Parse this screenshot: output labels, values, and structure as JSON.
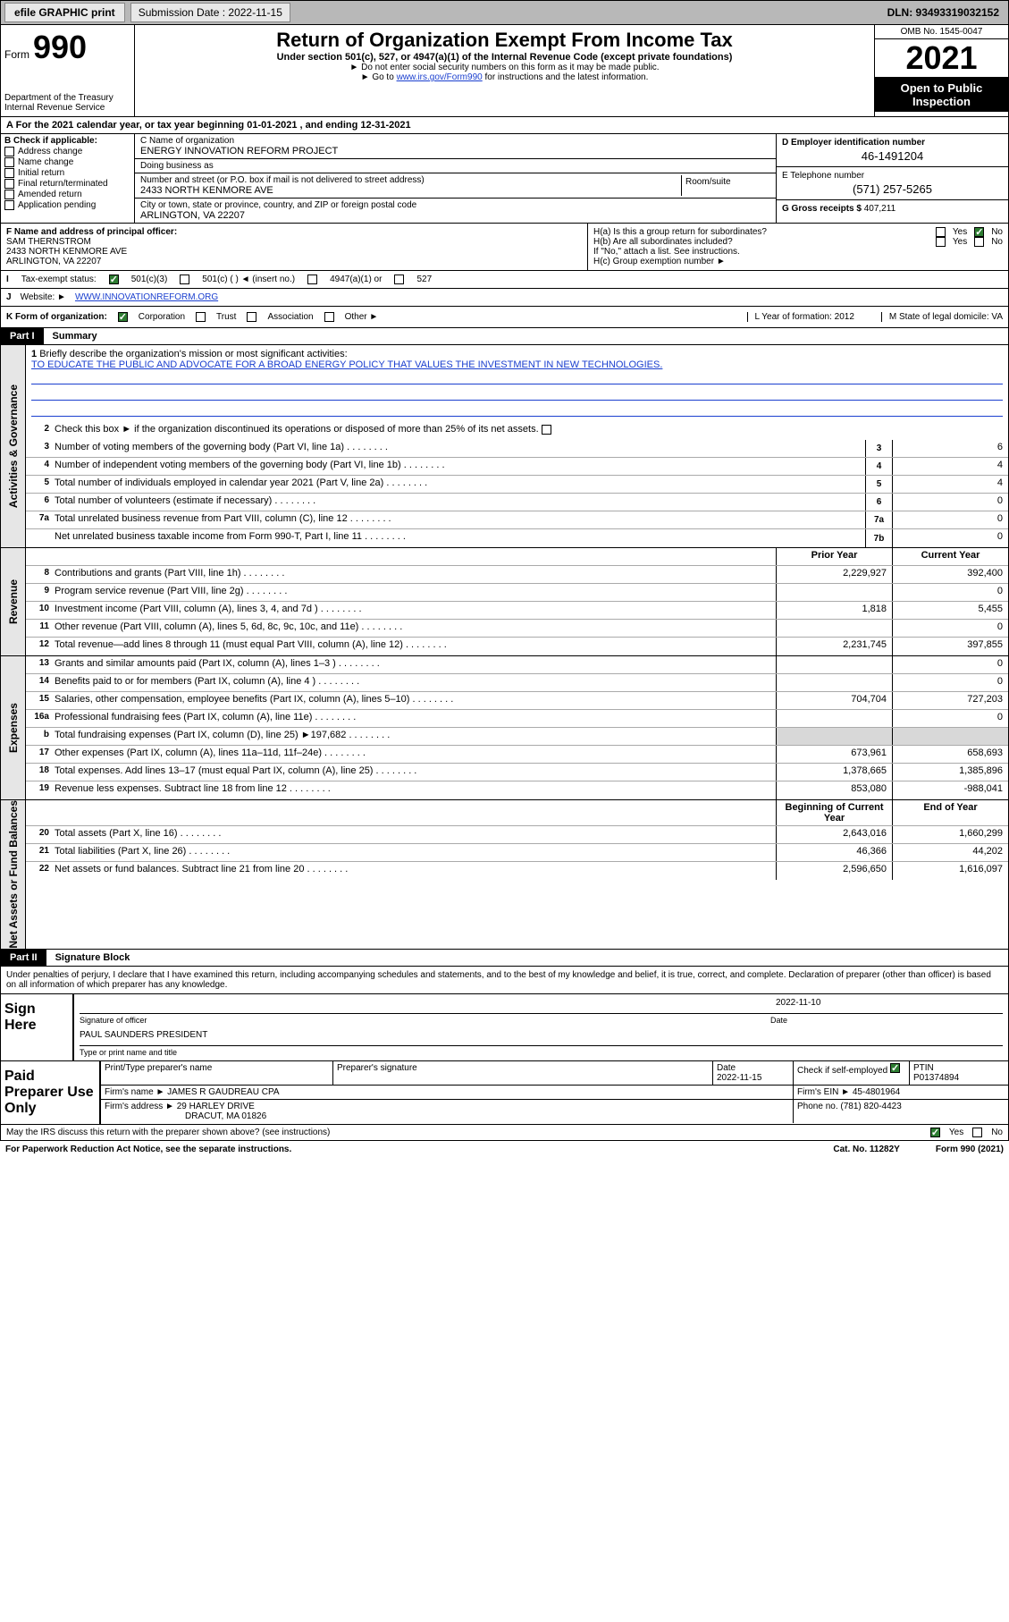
{
  "topbar": {
    "efile_label": "efile GRAPHIC print",
    "submission_label": "Submission Date : 2022-11-15",
    "dln": "DLN: 93493319032152"
  },
  "header": {
    "form_word": "Form",
    "form_number": "990",
    "title": "Return of Organization Exempt From Income Tax",
    "subtitle": "Under section 501(c), 527, or 4947(a)(1) of the Internal Revenue Code (except private foundations)",
    "note1": "Do not enter social security numbers on this form as it may be made public.",
    "note2_pre": "Go to ",
    "note2_link": "www.irs.gov/Form990",
    "note2_post": " for instructions and the latest information.",
    "dept": "Department of the Treasury\nInternal Revenue Service",
    "omb": "OMB No. 1545-0047",
    "taxyear": "2021",
    "open": "Open to Public Inspection"
  },
  "period": {
    "line": "For the 2021 calendar year, or tax year beginning 01-01-2021   , and ending 12-31-2021",
    "prefix": "A"
  },
  "checks": {
    "heading": "B Check if applicable:",
    "address_change": "Address change",
    "name_change": "Name change",
    "initial_return": "Initial return",
    "final_return": "Final return/terminated",
    "amended_return": "Amended return",
    "application_pending": "Application pending"
  },
  "entity": {
    "name_label": "C Name of organization",
    "name": "ENERGY INNOVATION REFORM PROJECT",
    "dba_label": "Doing business as",
    "dba": "",
    "street_label": "Number and street (or P.O. box if mail is not delivered to street address)",
    "street": "2433 NORTH KENMORE AVE",
    "suite_label": "Room/suite",
    "city_label": "City or town, state or province, country, and ZIP or foreign postal code",
    "city": "ARLINGTON, VA  22207",
    "ein_label": "D Employer identification number",
    "ein": "46-1491204",
    "phone_label": "E Telephone number",
    "phone": "(571) 257-5265",
    "gross_label": "G Gross receipts $",
    "gross": "407,211"
  },
  "officer": {
    "label": "F  Name and address of principal officer:",
    "name": "SAM THERNSTROM",
    "street": "2433 NORTH KENMORE AVE",
    "city": "ARLINGTON, VA  22207"
  },
  "h": {
    "ha_label": "H(a)  Is this a group return for subordinates?",
    "hb_label": "H(b)  Are all subordinates included?",
    "hb_note": "If \"No,\" attach a list. See instructions.",
    "hc_label": "H(c)  Group exemption number ►",
    "yes": "Yes",
    "no": "No"
  },
  "i": {
    "label": "Tax-exempt status:",
    "opt1": "501(c)(3)",
    "opt2": "501(c) (  ) ◄ (insert no.)",
    "opt3": "4947(a)(1) or",
    "opt4": "527"
  },
  "j": {
    "label": "Website: ►",
    "value": "WWW.INNOVATIONREFORM.ORG"
  },
  "k": {
    "label": "K Form of organization:",
    "corp": "Corporation",
    "trust": "Trust",
    "assoc": "Association",
    "other": "Other ►",
    "l_label": "L Year of formation:",
    "l_val": "2012",
    "m_label": "M State of legal domicile:",
    "m_val": "VA"
  },
  "part1": {
    "tag": "Part I",
    "title": "Summary"
  },
  "governance": {
    "sidelabel": "Activities & Governance",
    "l1_label": "Briefly describe the organization's mission or most significant activities:",
    "l1_mission": "TO EDUCATE THE PUBLIC AND ADVOCATE FOR A BROAD ENERGY POLICY THAT VALUES THE INVESTMENT IN NEW TECHNOLOGIES.",
    "l2_label": "Check this box ►        if the organization discontinued its operations or disposed of more than 25% of its net assets.",
    "l3_label": "Number of voting members of the governing body (Part VI, line 1a)",
    "l3_val": "6",
    "l4_label": "Number of independent voting members of the governing body (Part VI, line 1b)",
    "l4_val": "4",
    "l5_label": "Total number of individuals employed in calendar year 2021 (Part V, line 2a)",
    "l5_val": "4",
    "l6_label": "Total number of volunteers (estimate if necessary)",
    "l6_val": "0",
    "l7a_label": "Total unrelated business revenue from Part VIII, column (C), line 12",
    "l7a_val": "0",
    "l7b_label": "Net unrelated business taxable income from Form 990-T, Part I, line 11",
    "l7b_val": "0"
  },
  "colheads": {
    "prior": "Prior Year",
    "current": "Current Year"
  },
  "revenue": {
    "sidelabel": "Revenue",
    "rows": [
      {
        "n": "8",
        "d": "Contributions and grants (Part VIII, line 1h)",
        "p": "2,229,927",
        "c": "392,400"
      },
      {
        "n": "9",
        "d": "Program service revenue (Part VIII, line 2g)",
        "p": "",
        "c": "0"
      },
      {
        "n": "10",
        "d": "Investment income (Part VIII, column (A), lines 3, 4, and 7d )",
        "p": "1,818",
        "c": "5,455"
      },
      {
        "n": "11",
        "d": "Other revenue (Part VIII, column (A), lines 5, 6d, 8c, 9c, 10c, and 11e)",
        "p": "",
        "c": "0"
      },
      {
        "n": "12",
        "d": "Total revenue—add lines 8 through 11 (must equal Part VIII, column (A), line 12)",
        "p": "2,231,745",
        "c": "397,855"
      }
    ]
  },
  "expenses": {
    "sidelabel": "Expenses",
    "rows": [
      {
        "n": "13",
        "d": "Grants and similar amounts paid (Part IX, column (A), lines 1–3 )",
        "p": "",
        "c": "0"
      },
      {
        "n": "14",
        "d": "Benefits paid to or for members (Part IX, column (A), line 4 )",
        "p": "",
        "c": "0"
      },
      {
        "n": "15",
        "d": "Salaries, other compensation, employee benefits (Part IX, column (A), lines 5–10)",
        "p": "704,704",
        "c": "727,203"
      },
      {
        "n": "16a",
        "d": "Professional fundraising fees (Part IX, column (A), line 11e)",
        "p": "",
        "c": "0"
      },
      {
        "n": "b",
        "d": "Total fundraising expenses (Part IX, column (D), line 25) ►197,682",
        "p": "__shade__",
        "c": "__shade__"
      },
      {
        "n": "17",
        "d": "Other expenses (Part IX, column (A), lines 11a–11d, 11f–24e)",
        "p": "673,961",
        "c": "658,693"
      },
      {
        "n": "18",
        "d": "Total expenses. Add lines 13–17 (must equal Part IX, column (A), line 25)",
        "p": "1,378,665",
        "c": "1,385,896"
      },
      {
        "n": "19",
        "d": "Revenue less expenses. Subtract line 18 from line 12",
        "p": "853,080",
        "c": "-988,041"
      }
    ]
  },
  "netassets": {
    "sidelabel": "Net Assets or Fund Balances",
    "begin": "Beginning of Current Year",
    "end": "End of Year",
    "rows": [
      {
        "n": "20",
        "d": "Total assets (Part X, line 16)",
        "p": "2,643,016",
        "c": "1,660,299"
      },
      {
        "n": "21",
        "d": "Total liabilities (Part X, line 26)",
        "p": "46,366",
        "c": "44,202"
      },
      {
        "n": "22",
        "d": "Net assets or fund balances. Subtract line 21 from line 20",
        "p": "2,596,650",
        "c": "1,616,097"
      }
    ]
  },
  "part2": {
    "tag": "Part II",
    "title": "Signature Block",
    "decl": "Under penalties of perjury, I declare that I have examined this return, including accompanying schedules and statements, and to the best of my knowledge and belief, it is true, correct, and complete. Declaration of preparer (other than officer) is based on all information of which preparer has any knowledge.",
    "sign_here": "Sign Here",
    "sig_officer": "Signature of officer",
    "date": "Date",
    "date_val": "2022-11-10",
    "officer_name": "PAUL SAUNDERS  PRESIDENT",
    "type_name": "Type or print name and title",
    "paid_label": "Paid Preparer Use Only",
    "prep_name_h": "Print/Type preparer's name",
    "prep_sig_h": "Preparer's signature",
    "prep_date_h": "Date",
    "prep_date": "2022-11-15",
    "prep_check": "Check         if self-employed",
    "ptin_h": "PTIN",
    "ptin": "P01374894",
    "firm_name_l": "Firm's name    ►",
    "firm_name": "JAMES R GAUDREAU CPA",
    "firm_ein_l": "Firm's EIN ►",
    "firm_ein": "45-4801964",
    "firm_addr_l": "Firm's address ►",
    "firm_addr1": "29 HARLEY DRIVE",
    "firm_addr2": "DRACUT, MA  01826",
    "firm_phone_l": "Phone no.",
    "firm_phone": "(781) 820-4423",
    "discuss": "May the IRS discuss this return with the preparer shown above? (see instructions)",
    "yes": "Yes",
    "no": "No"
  },
  "footer": {
    "pra": "For Paperwork Reduction Act Notice, see the separate instructions.",
    "cat": "Cat. No. 11282Y",
    "form": "Form 990 (2021)"
  }
}
